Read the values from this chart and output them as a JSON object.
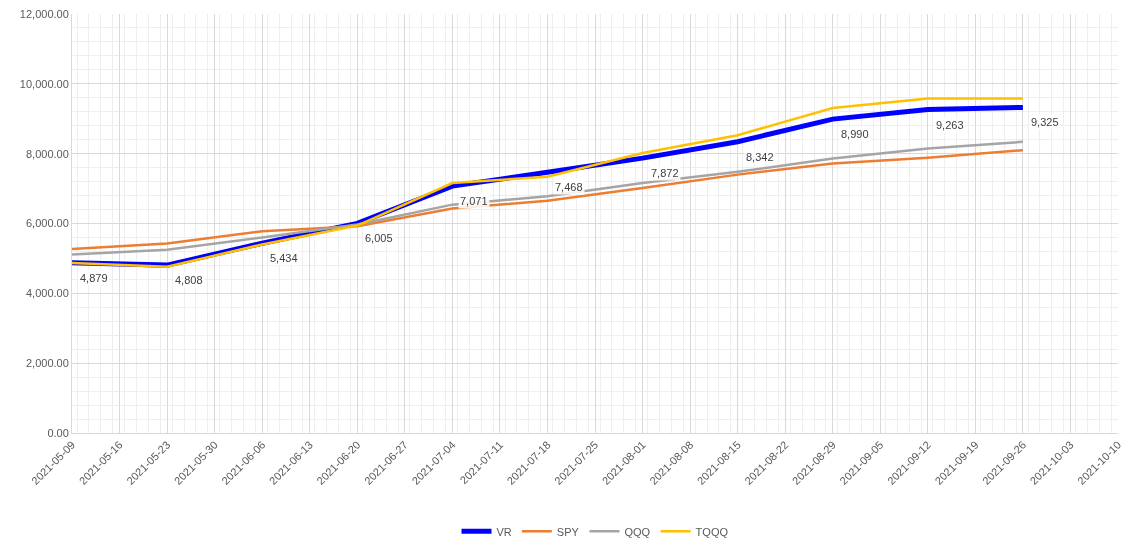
{
  "chart_data": {
    "type": "line",
    "x": [
      "2021-05-09",
      "2021-05-23",
      "2021-06-06",
      "2021-06-20",
      "2021-07-04",
      "2021-07-18",
      "2021-08-01",
      "2021-08-15",
      "2021-08-29",
      "2021-09-12",
      "2021-09-26"
    ],
    "series": [
      {
        "name": "VR",
        "color": "#0000ff",
        "values": [
          4879,
          4808,
          5434,
          6005,
          7071,
          7468,
          7872,
          8342,
          8990,
          9263,
          9325
        ],
        "value_labels": [
          "4,879",
          "4,808",
          "5,434",
          "6,005",
          "7,071",
          "7,468",
          "7,872",
          "8,342",
          "8,990",
          "9,263",
          "9,325"
        ]
      },
      {
        "name": "SPY",
        "color": "#ed7d31",
        "values": [
          5270,
          5430,
          5780,
          5920,
          6430,
          6650,
          7020,
          7400,
          7720,
          7880,
          8100
        ]
      },
      {
        "name": "QQQ",
        "color": "#a5a5a5",
        "values": [
          5110,
          5250,
          5600,
          5970,
          6540,
          6780,
          7160,
          7480,
          7860,
          8150,
          8340
        ]
      },
      {
        "name": "TQQQ",
        "color": "#ffc000",
        "values": [
          4870,
          4760,
          5400,
          5940,
          7160,
          7340,
          8020,
          8530,
          9310,
          9580,
          9580
        ]
      }
    ],
    "xlim": [
      "2021-05-09",
      "2021-10-10"
    ],
    "xticks": [
      "2021-05-09",
      "2021-05-16",
      "2021-05-23",
      "2021-05-30",
      "2021-06-06",
      "2021-06-13",
      "2021-06-20",
      "2021-06-27",
      "2021-07-04",
      "2021-07-11",
      "2021-07-18",
      "2021-07-25",
      "2021-08-01",
      "2021-08-08",
      "2021-08-15",
      "2021-08-22",
      "2021-08-29",
      "2021-09-05",
      "2021-09-12",
      "2021-09-19",
      "2021-09-26",
      "2021-10-03",
      "2021-10-10"
    ],
    "ylim": [
      0,
      12000
    ],
    "yticks": [
      {
        "value": 0,
        "label": "0.00"
      },
      {
        "value": 2000,
        "label": "2,000.00"
      },
      {
        "value": 4000,
        "label": "4,000.00"
      },
      {
        "value": 6000,
        "label": "6,000.00"
      },
      {
        "value": 8000,
        "label": "8,000.00"
      },
      {
        "value": 10000,
        "label": "10,000.00"
      },
      {
        "value": 12000,
        "label": "12,000.00"
      }
    ],
    "grid": true,
    "legend": "bottom",
    "marker": "none",
    "line_style": "solid"
  }
}
